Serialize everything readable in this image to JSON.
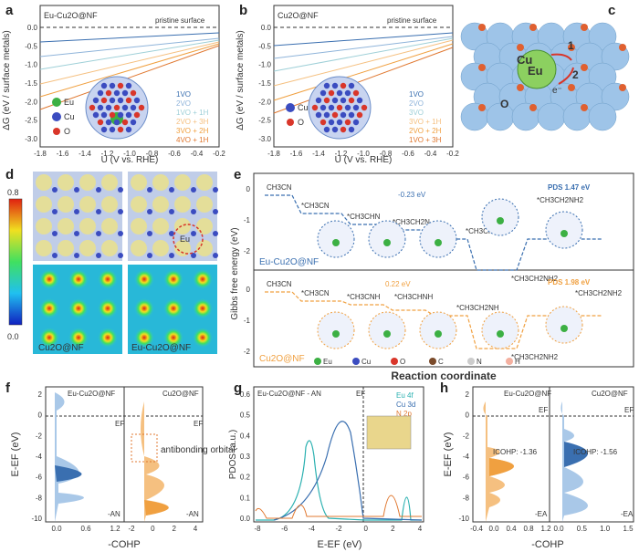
{
  "panels": {
    "a": {
      "label": "a",
      "title": "Eu-Cu2O@NF",
      "note": "pristine surface",
      "xlabel": "U (V vs. RHE)",
      "ylabel": "ΔG (eV / surface metals)",
      "xticks": [
        "-1.8",
        "-1.6",
        "-1.4",
        "-1.2",
        "-1.0",
        "-0.8",
        "-0.6",
        "-0.4",
        "-0.2"
      ],
      "yticks": [
        "0.0",
        "-0.5",
        "-1.0",
        "-1.5",
        "-2.0",
        "-2.5",
        "-3.0"
      ],
      "legend": [
        "1VO",
        "2VO",
        "1VO + 1H",
        "2VO + 3H",
        "3VO + 2H",
        "4VO + 1H"
      ],
      "atoms": [
        "Eu",
        "Cu",
        "O"
      ]
    },
    "b": {
      "label": "b",
      "title": "Cu2O@NF",
      "note": "pristine surface",
      "xlabel": "U (V vs. RHE)",
      "ylabel": "ΔG (eV / surface metals)",
      "xticks": [
        "-1.8",
        "-1.6",
        "-1.4",
        "-1.2",
        "-1.0",
        "-0.8",
        "-0.6",
        "-0.4",
        "-0.2"
      ],
      "yticks": [
        "0.0",
        "-0.5",
        "-1.0",
        "-1.5",
        "-2.0",
        "-2.5",
        "-3.0"
      ],
      "legend": [
        "1VO",
        "2VO",
        "3VO",
        "3VO + 1H",
        "2VO + 2H",
        "1VO + 3H"
      ],
      "atoms": [
        "Cu",
        "O"
      ]
    },
    "c": {
      "label": "c",
      "atoms": [
        "Cu",
        "Eu",
        "O"
      ],
      "arrows": [
        "1",
        "2"
      ],
      "electron": "e⁻"
    },
    "d": {
      "label": "d",
      "cbar_max": "0.8",
      "cbar_min": "0.0",
      "names": [
        "Cu2O@NF",
        "Eu-Cu2O@NF"
      ],
      "eu": "Eu"
    },
    "e": {
      "label": "e",
      "ylabel": "Gibbs free energy (eV)",
      "xlabel": "Reaction coordinate",
      "yticks_top": [
        "0",
        "-1",
        "-2"
      ],
      "yticks_bot": [
        "0",
        "-1",
        "-2"
      ],
      "top_name": "Eu-Cu2O@NF",
      "bot_name": "Cu2O@NF",
      "top_states": [
        "CH3CN",
        "*CH3CN",
        "*CH3CHN",
        "*CH3CH2N",
        "*CH3CH2NH",
        "*CH3CH2NH2",
        "*CH3CH2NH2"
      ],
      "bot_states": [
        "CH3CN",
        "*CH3CN",
        "*CH3CNH",
        "*CH3CHNH",
        "*CH3CH2NH",
        "*CH3CH2NH2",
        "*CH3CH2NH2"
      ],
      "top_annot1": "-0.23 eV",
      "top_annot2": "PDS 1.47 eV",
      "bot_annot1": "0.22 eV",
      "bot_annot2": "PDS 1.98 eV",
      "legend": [
        "Eu",
        "Cu",
        "O",
        "C",
        "N",
        "H"
      ]
    },
    "f": {
      "label": "f",
      "ylabel": "E-EF (eV)",
      "xlabel": "-COHP",
      "left_title": "Eu-Cu2O@NF",
      "right_title": "Cu2O@NF",
      "ef": "EF",
      "tag": "-AN",
      "annot": "antibonding orbital",
      "yticks": [
        "2",
        "0",
        "-2",
        "-4",
        "-6",
        "-8",
        "-10"
      ],
      "xticks_l": [
        "0.0",
        "0.6",
        "1.2"
      ],
      "xticks_r": [
        "-2",
        "0",
        "2",
        "4"
      ]
    },
    "g": {
      "label": "g",
      "title": "Eu-Cu2O@NF - AN",
      "ylabel": "PDOS (a.u.)",
      "xlabel": "E-EF (eV)",
      "ef": "EF",
      "legend": [
        "Eu 4f",
        "Cu 3d",
        "N 2p"
      ],
      "xticks": [
        "-8",
        "-6",
        "-4",
        "-2",
        "0",
        "2",
        "4"
      ],
      "yticks": [
        "0.0",
        "0.1",
        "0.2",
        "0.3",
        "0.4",
        "0.5",
        "0.6"
      ]
    },
    "h": {
      "label": "h",
      "ylabel": "E-EF (eV)",
      "xlabel": "-COHP",
      "left_title": "Eu-Cu2O@NF",
      "right_title": "Cu2O@NF",
      "ef": "EF",
      "tag": "-EA",
      "icohp_l": "ICOHP: -1.36",
      "icohp_r": "ICOHP: -1.56",
      "yticks": [
        "2",
        "0",
        "-2",
        "-4",
        "-6",
        "-8",
        "-10"
      ],
      "xticks_l": [
        "-0.4",
        "0.0",
        "0.4",
        "0.8",
        "1.2"
      ],
      "xticks_r": [
        "0.0",
        "0.5",
        "1.0",
        "1.5"
      ]
    }
  },
  "colors": {
    "blue": "#3a6fb0",
    "orange": "#f0a040",
    "lightblue": "#a9c8e8",
    "cu": "#3b4cc0",
    "o": "#d9362a",
    "eu": "#3cb043"
  }
}
